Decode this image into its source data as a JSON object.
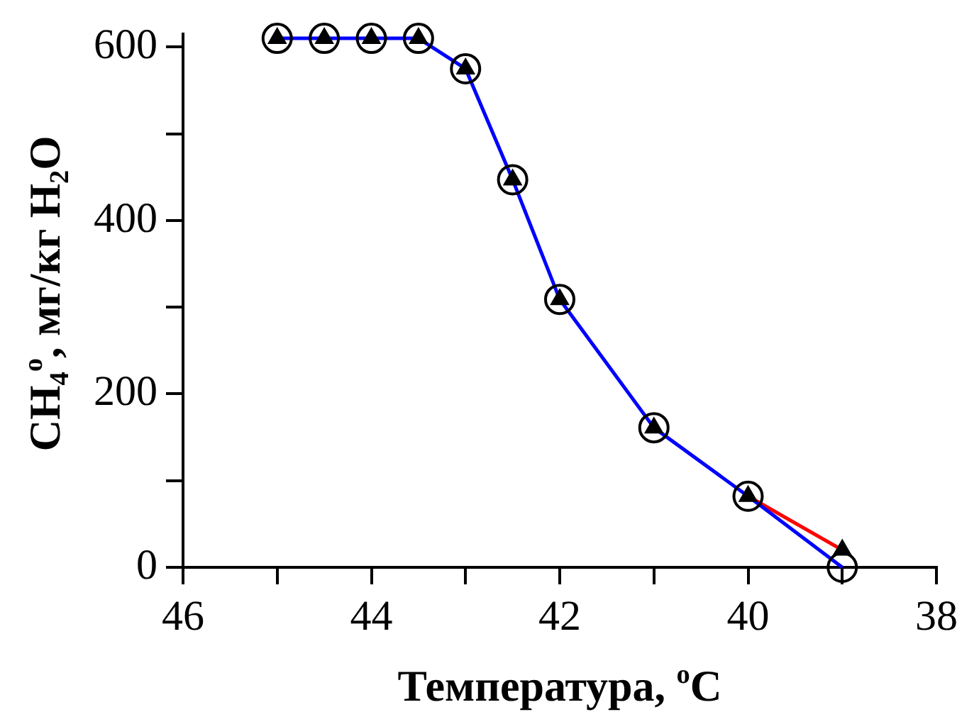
{
  "chart_data": {
    "type": "line",
    "xlabel": "Температура, $^{o}$C",
    "ylabel": "CH$_{4}$$^{o}$, мг/кг H$_{2}$O",
    "x": [
      45,
      44.5,
      44,
      43.5,
      43,
      42.5,
      42,
      41,
      40,
      39
    ],
    "series": [
      {
        "type": "scatter",
        "marker": "circle",
        "color": "#000000",
        "values": [
          610,
          610,
          610,
          610,
          575,
          447,
          309,
          161,
          82,
          0
        ]
      },
      {
        "marker": "none",
        "color": "#0000ff",
        "values": [
          610,
          610,
          610,
          610,
          575,
          447,
          309,
          161,
          82,
          0
        ]
      },
      {
        "marker": "none",
        "color": "#ff0000",
        "x": [
          40,
          39
        ],
        "values": [
          82,
          20
        ]
      },
      {
        "type": "scatter",
        "marker": "triangle",
        "color": "#000000",
        "values": [
          610,
          610,
          610,
          610,
          575,
          447,
          309,
          161,
          82,
          20
        ]
      }
    ],
    "xlim": [
      46,
      38
    ],
    "xticks": [
      46,
      {
        "value": 45,
        "label": null
      },
      44,
      {
        "value": 43,
        "label": null
      },
      42,
      {
        "value": 41,
        "label": null
      },
      40,
      {
        "value": 39,
        "label": null
      },
      38
    ],
    "ylim": [
      0,
      615
    ],
    "yticks": [
      0,
      {
        "value": 100,
        "label": null
      },
      200,
      {
        "value": 300,
        "label": null
      },
      400,
      {
        "value": 500,
        "label": null
      },
      600
    ],
    "grid": false,
    "legend": false
  }
}
